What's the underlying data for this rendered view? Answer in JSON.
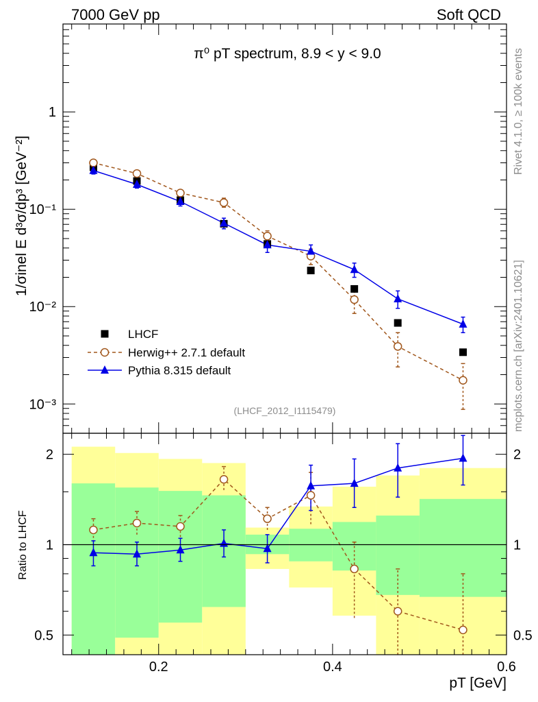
{
  "header": {
    "left": "7000 GeV pp",
    "right": "Soft QCD"
  },
  "side_labels": {
    "rivet": "Rivet 4.1.0, ≥ 100k events",
    "mcplots": "mcplots.cern.ch [arXiv:2401.10621]"
  },
  "colors": {
    "data": "#000000",
    "herwig": "#a0561b",
    "pythia": "#0000e6",
    "band_inner": "#99ff99",
    "band_outer": "#ffff99"
  },
  "chart_data": [
    {
      "panel": "main",
      "type": "scatter",
      "title": "π⁰ pT spectrum, 8.9 < y < 9.0",
      "analysis_id": "(LHCF_2012_I1115479)",
      "xlabel": "pT [GeV]",
      "ylabel": "1/σinel E d³σ/dp³ [GeV⁻²]",
      "yscale": "log",
      "xlim": [
        0.09,
        0.6
      ],
      "ylim": [
        0.0005,
        8
      ],
      "ytick_labels": [
        "10⁻³",
        "10⁻²",
        "10⁻¹",
        "1"
      ],
      "x": [
        0.125,
        0.175,
        0.225,
        0.275,
        0.325,
        0.375,
        0.425,
        0.475,
        0.55
      ],
      "series": [
        {
          "name": "LHCF",
          "marker": "square",
          "values": [
            0.27,
            0.195,
            0.124,
            0.071,
            0.044,
            0.0235,
            0.0152,
            0.0068,
            0.0034
          ]
        },
        {
          "name": "Herwig++ 2.7.1 default",
          "marker": "open-circle",
          "line": "dashed",
          "values": [
            0.3,
            0.233,
            0.147,
            0.117,
            0.053,
            0.033,
            0.0118,
            0.0039,
            0.00175
          ],
          "err_low": [
            0.28,
            0.22,
            0.138,
            0.105,
            0.046,
            0.027,
            0.0085,
            0.0024,
            0.00088
          ],
          "err_high": [
            0.32,
            0.248,
            0.156,
            0.13,
            0.06,
            0.039,
            0.015,
            0.0054,
            0.0026
          ]
        },
        {
          "name": "Pythia 8.315 default",
          "marker": "filled-triangle",
          "line": "solid",
          "values": [
            0.25,
            0.18,
            0.12,
            0.072,
            0.043,
            0.037,
            0.024,
            0.012,
            0.0066
          ],
          "err_low": [
            0.23,
            0.165,
            0.108,
            0.063,
            0.036,
            0.031,
            0.02,
            0.0096,
            0.0054
          ],
          "err_high": [
            0.27,
            0.195,
            0.132,
            0.081,
            0.05,
            0.043,
            0.028,
            0.0145,
            0.0078
          ]
        }
      ]
    },
    {
      "panel": "ratio",
      "type": "scatter",
      "ylabel": "Ratio to LHCF",
      "xlabel": "pT [GeV]",
      "yscale": "log",
      "xlim": [
        0.09,
        0.6
      ],
      "ylim": [
        0.43,
        2.35
      ],
      "xtick_labels": [
        "0.2",
        "0.4",
        "0.6"
      ],
      "ytick_labels": [
        "0.5",
        "1",
        "2"
      ],
      "bins": [
        [
          0.1,
          0.15
        ],
        [
          0.15,
          0.2
        ],
        [
          0.2,
          0.25
        ],
        [
          0.25,
          0.3
        ],
        [
          0.3,
          0.35
        ],
        [
          0.35,
          0.4
        ],
        [
          0.4,
          0.45
        ],
        [
          0.45,
          0.5
        ],
        [
          0.5,
          0.6
        ]
      ],
      "band_inner": {
        "low": [
          0.37,
          0.49,
          0.55,
          0.62,
          0.93,
          0.88,
          0.82,
          0.68,
          0.67
        ],
        "high": [
          1.6,
          1.55,
          1.51,
          1.46,
          1.08,
          1.13,
          1.19,
          1.25,
          1.42
        ]
      },
      "band_outer": {
        "low": [
          0.36,
          0.36,
          0.36,
          0.36,
          0.83,
          0.72,
          0.58,
          0.36,
          0.36
        ],
        "high": [
          2.12,
          2.02,
          1.93,
          1.87,
          1.14,
          1.34,
          1.56,
          1.7,
          1.8
        ]
      },
      "x": [
        0.125,
        0.175,
        0.225,
        0.275,
        0.325,
        0.375,
        0.425,
        0.475,
        0.55
      ],
      "series": [
        {
          "name": "Herwig++ 2.7.1 default",
          "values": [
            1.12,
            1.18,
            1.15,
            1.65,
            1.22,
            1.46,
            0.83,
            0.6,
            0.52
          ],
          "err_low": [
            1.02,
            1.08,
            1.06,
            1.52,
            1.12,
            1.17,
            0.57,
            0.36,
            0.36
          ],
          "err_high": [
            1.22,
            1.29,
            1.25,
            1.82,
            1.33,
            1.74,
            1.02,
            0.83,
            0.8
          ]
        },
        {
          "name": "Pythia 8.315 default",
          "values": [
            0.94,
            0.93,
            0.96,
            1.01,
            0.97,
            1.57,
            1.6,
            1.8,
            1.94
          ],
          "err_low": [
            0.85,
            0.85,
            0.88,
            0.91,
            0.87,
            1.3,
            1.33,
            1.44,
            1.58
          ],
          "err_high": [
            1.03,
            1.02,
            1.05,
            1.12,
            1.08,
            1.84,
            1.93,
            2.17,
            2.31
          ]
        }
      ]
    }
  ]
}
